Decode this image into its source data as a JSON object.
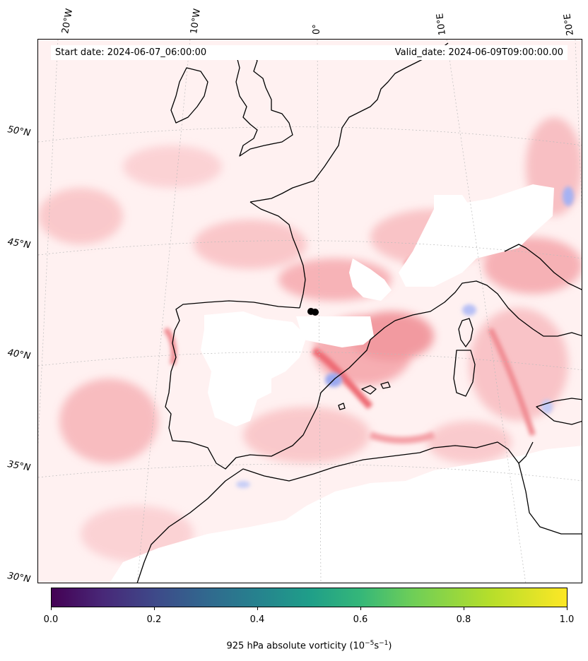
{
  "map": {
    "start_date": "Start date: 2024-06-07_06:00:00",
    "valid_date": "Valid_date: 2024-06-09T09:00:00.00",
    "lon_labels": [
      "20°W",
      "10°W",
      "0°",
      "10°E",
      "20°E"
    ],
    "lat_labels": [
      "50°N",
      "45°N",
      "40°N",
      "35°N",
      "30°N"
    ],
    "field": "925 hPa absolute vorticity",
    "colors": {
      "positive": "#f4a3a8",
      "strong_positive": "#ee6b73",
      "negative": "#b9c3f5",
      "zero": "#ffffff",
      "coastline": "#000000"
    },
    "marker": "black dot"
  },
  "colorbar": {
    "ticks": [
      "0.0",
      "0.2",
      "0.4",
      "0.6",
      "0.8",
      "1.0"
    ],
    "label": "925 hPa absolute vorticity (10",
    "label_sup1": "−5",
    "label_mid": "s",
    "label_sup2": "−1",
    "label_end": ")",
    "colormap": "viridis",
    "range": [
      0.0,
      1.0
    ]
  }
}
